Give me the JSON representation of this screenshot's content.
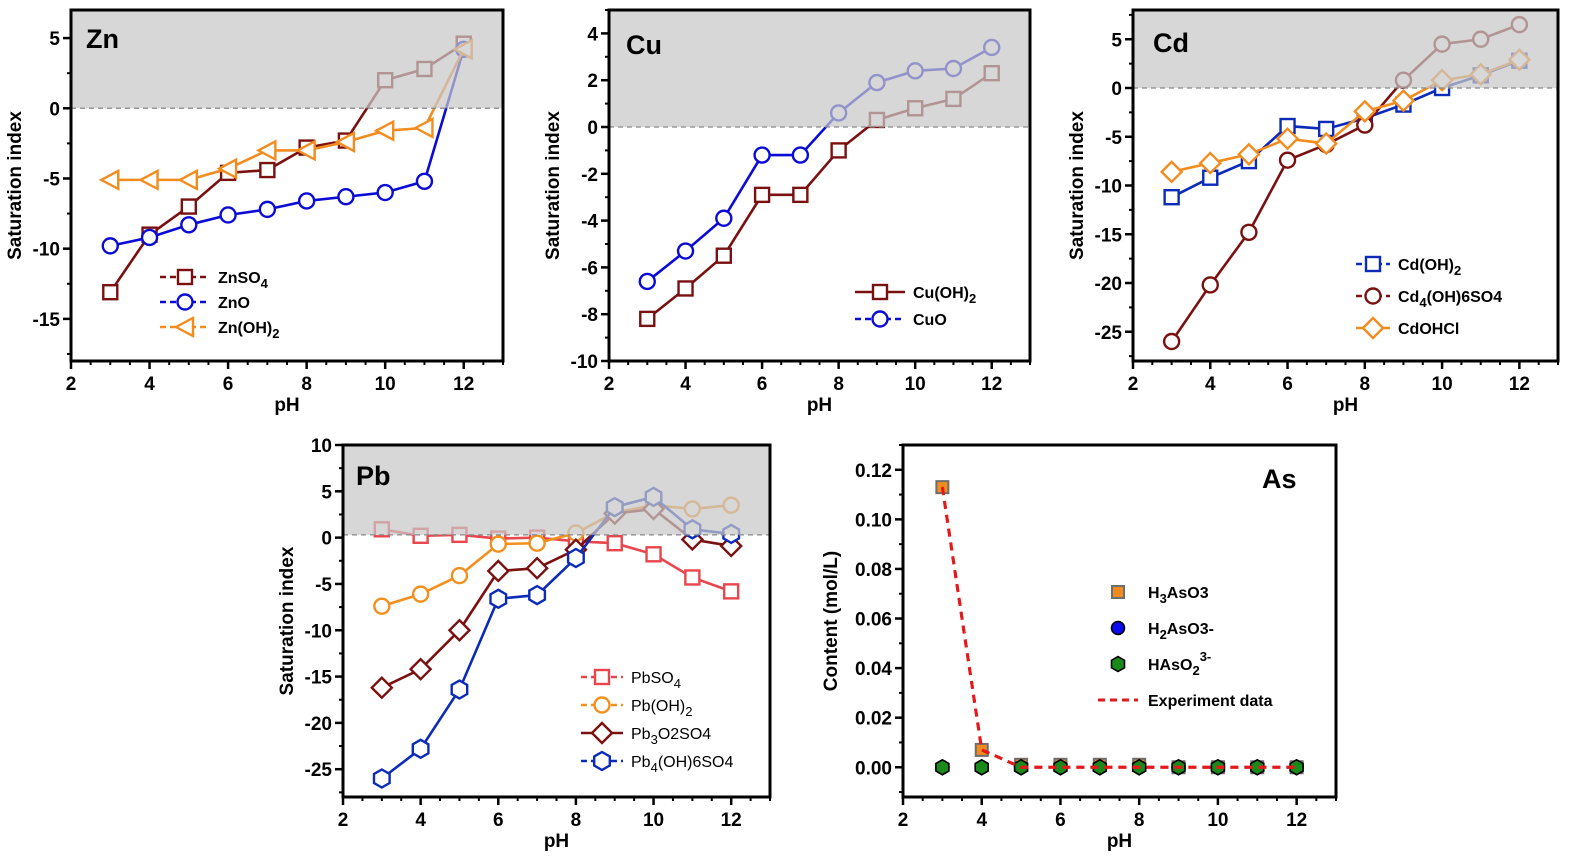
{
  "chart_data": [
    {
      "id": "zn",
      "type": "line",
      "panel_label": "Zn",
      "xlabel": "pH",
      "ylabel": "Saturation index",
      "xlim": [
        2,
        13
      ],
      "ylim": [
        -18,
        7
      ],
      "xticks": [
        2,
        4,
        6,
        8,
        10,
        12
      ],
      "yticks": [
        5,
        0,
        -5,
        -10,
        -15
      ],
      "supersaturation_shading": "above 0",
      "legend_position": "lower-center",
      "x": [
        3,
        4,
        5,
        6,
        7,
        8,
        9,
        10,
        11,
        12
      ],
      "series": [
        {
          "name": "ZnSO4",
          "label_main": "ZnSO",
          "label_sub": "4",
          "label_tail": "",
          "marker": "square",
          "color": "#7b1010",
          "values": [
            -13.1,
            -9.0,
            -7.0,
            -4.6,
            -4.4,
            -2.8,
            -2.3,
            2.0,
            2.8,
            4.6
          ]
        },
        {
          "name": "ZnO",
          "label_main": "ZnO",
          "label_sub": "",
          "label_tail": "",
          "marker": "circle",
          "color": "#0b0bd6",
          "values": [
            -9.8,
            -9.2,
            -8.3,
            -7.6,
            -7.2,
            -6.6,
            -6.3,
            -6.0,
            -5.2,
            4.2
          ]
        },
        {
          "name": "Zn(OH)2",
          "label_main": "Zn(OH)",
          "label_sub": "2",
          "label_tail": "",
          "marker": "triangle-left",
          "color": "#f28c1e",
          "values": [
            -5.1,
            -5.1,
            -5.1,
            -4.3,
            -3.0,
            -3.0,
            -2.4,
            -1.6,
            -1.4,
            4.2
          ]
        }
      ]
    },
    {
      "id": "cu",
      "type": "line",
      "panel_label": "Cu",
      "xlabel": "pH",
      "ylabel": "Saturation index",
      "xlim": [
        2,
        13
      ],
      "ylim": [
        -10,
        5
      ],
      "xticks": [
        2,
        4,
        6,
        8,
        10,
        12
      ],
      "yticks": [
        4,
        2,
        0,
        -2,
        -4,
        -6,
        -8,
        -10
      ],
      "supersaturation_shading": "above 0",
      "legend_position": "lower-right",
      "x": [
        3,
        4,
        5,
        6,
        7,
        8,
        9,
        10,
        11,
        12
      ],
      "series": [
        {
          "name": "Cu(OH)2",
          "label_main": "Cu(OH)",
          "label_sub": "2",
          "label_tail": "",
          "marker": "square",
          "color": "#7b1010",
          "values": [
            -8.2,
            -6.9,
            -5.5,
            -2.9,
            -2.9,
            -1.0,
            0.3,
            0.8,
            1.2,
            2.3
          ]
        },
        {
          "name": "CuO",
          "label_main": "CuO",
          "label_sub": "",
          "label_tail": "",
          "marker": "circle",
          "color": "#0b0bd6",
          "values": [
            -6.6,
            -5.3,
            -3.9,
            -1.2,
            -1.2,
            0.6,
            1.9,
            2.4,
            2.5,
            3.4
          ]
        }
      ]
    },
    {
      "id": "cd",
      "type": "line",
      "panel_label": "Cd",
      "xlabel": "pH",
      "ylabel": "Saturation index",
      "xlim": [
        2,
        13
      ],
      "ylim": [
        -28,
        8
      ],
      "xticks": [
        2,
        4,
        6,
        8,
        10,
        12
      ],
      "yticks": [
        5,
        0,
        -5,
        -10,
        -15,
        -20,
        -25
      ],
      "supersaturation_shading": "above 0",
      "legend_position": "lower-right",
      "x": [
        3,
        4,
        5,
        6,
        7,
        8,
        9,
        10,
        11,
        12
      ],
      "series": [
        {
          "name": "Cd(OH)2",
          "label_main": "Cd(OH)",
          "label_sub": "2",
          "label_tail": "",
          "marker": "square",
          "color": "#0b2bb8",
          "values": [
            -11.2,
            -9.2,
            -7.5,
            -3.9,
            -4.2,
            -3.1,
            -1.7,
            0.0,
            1.3,
            2.8
          ]
        },
        {
          "name": "Cd4(OH)6SO4",
          "label_main": "Cd",
          "label_sub": "4",
          "label_tail": "(OH)6SO4",
          "marker": "circle",
          "color": "#7b1010",
          "values": [
            -26.0,
            -20.2,
            -14.8,
            -7.4,
            -5.8,
            -3.8,
            0.8,
            4.5,
            5.0,
            6.5
          ]
        },
        {
          "name": "CdOHCl",
          "label_main": "CdOHCl",
          "label_sub": "",
          "label_tail": "",
          "marker": "diamond",
          "color": "#f28c1e",
          "values": [
            -8.6,
            -7.7,
            -6.8,
            -5.2,
            -5.7,
            -2.4,
            -1.3,
            0.8,
            1.4,
            2.9
          ]
        }
      ]
    },
    {
      "id": "pb",
      "type": "line",
      "panel_label": "Pb",
      "xlabel": "pH",
      "ylabel": "Saturation index",
      "xlim": [
        2,
        13
      ],
      "ylim": [
        -28,
        10
      ],
      "xticks": [
        2,
        4,
        6,
        8,
        10,
        12
      ],
      "yticks": [
        10,
        5,
        0,
        -5,
        -10,
        -15,
        -20,
        -25
      ],
      "supersaturation_shading": "above 0.3",
      "legend_position": "lower-right",
      "x": [
        3,
        4,
        5,
        6,
        7,
        8,
        9,
        10,
        11,
        12
      ],
      "series": [
        {
          "name": "PbSO4",
          "label_main": "PbSO",
          "label_sub": "4",
          "label_tail": "",
          "marker": "square",
          "color": "#e8464c",
          "values": [
            0.9,
            0.2,
            0.3,
            -0.1,
            0.0,
            -0.4,
            -0.6,
            -1.8,
            -4.3,
            -5.8
          ]
        },
        {
          "name": "Pb(OH)2",
          "label_main": "Pb(OH)",
          "label_sub": "2",
          "label_tail": "",
          "marker": "circle",
          "color": "#f2901e",
          "values": [
            -7.4,
            -6.1,
            -4.1,
            -0.7,
            -0.6,
            0.5,
            2.7,
            3.5,
            3.1,
            3.5
          ]
        },
        {
          "name": "Pb3O2SO4",
          "label_main": "Pb",
          "label_sub": "3",
          "label_tail": "O2SO4",
          "marker": "diamond",
          "color": "#7b1010",
          "values": [
            -16.2,
            -14.2,
            -10.0,
            -3.6,
            -3.3,
            -1.3,
            2.6,
            3.1,
            -0.2,
            -0.9
          ]
        },
        {
          "name": "Pb4(OH)6SO4",
          "label_main": "Pb",
          "label_sub": "4",
          "label_tail": "(OH)6SO4",
          "marker": "hexagon",
          "color": "#0b2bb8",
          "values": [
            -26.0,
            -22.8,
            -16.4,
            -6.6,
            -6.2,
            -2.2,
            3.3,
            4.4,
            0.9,
            0.4
          ]
        }
      ]
    },
    {
      "id": "as",
      "type": "scatter",
      "panel_label": "As",
      "xlabel": "pH",
      "ylabel": "Content (mol/L)",
      "xlim": [
        2,
        13
      ],
      "ylim": [
        -0.012,
        0.13
      ],
      "xticks": [
        2,
        4,
        6,
        8,
        10,
        12
      ],
      "yticks": [
        0.12,
        0.1,
        0.08,
        0.06,
        0.04,
        0.02,
        0.0
      ],
      "legend_position": "center-right",
      "x": [
        3,
        4,
        5,
        6,
        7,
        8,
        9,
        10,
        11,
        12
      ],
      "series": [
        {
          "name": "H3AsO3",
          "label_main": "H",
          "label_sub": "3",
          "label_tail": "AsO3",
          "marker": "filled-square",
          "color": "#f28c1e",
          "edge": "#6e6e6e",
          "values": [
            0.113,
            0.007,
            0.001,
            0.001,
            0.001,
            0.001,
            0.0,
            0.0,
            0.0,
            0.0
          ]
        },
        {
          "name": "H2AsO3-",
          "label_main": "H",
          "label_sub": "2",
          "label_tail": "AsO3-",
          "marker": "filled-circle",
          "color": "#0b0bf0",
          "edge": "#000000",
          "values": [
            0.0,
            0.0,
            0.0,
            0.0,
            0.0,
            0.0,
            0.0,
            0.0,
            0.0,
            0.0
          ]
        },
        {
          "name": "HAsO2 3-",
          "label_main": "HAsO",
          "label_sub": "2",
          "label_tail": "3-",
          "marker": "filled-hexagon",
          "color": "#1a8a1a",
          "edge": "#000000",
          "values": [
            0.0,
            0.0,
            0.0,
            0.0,
            0.0,
            0.0,
            0.0,
            0.0,
            0.0,
            0.0
          ]
        },
        {
          "name": "Experiment data",
          "label_main": "Experiment data",
          "label_sub": "",
          "label_tail": "",
          "marker": "dashed-line",
          "color": "#e31a1c",
          "values": [
            0.113,
            0.007,
            0.0,
            0.0,
            0.0,
            0.0,
            0.0,
            0.0,
            0.0,
            0.0
          ]
        }
      ]
    }
  ]
}
